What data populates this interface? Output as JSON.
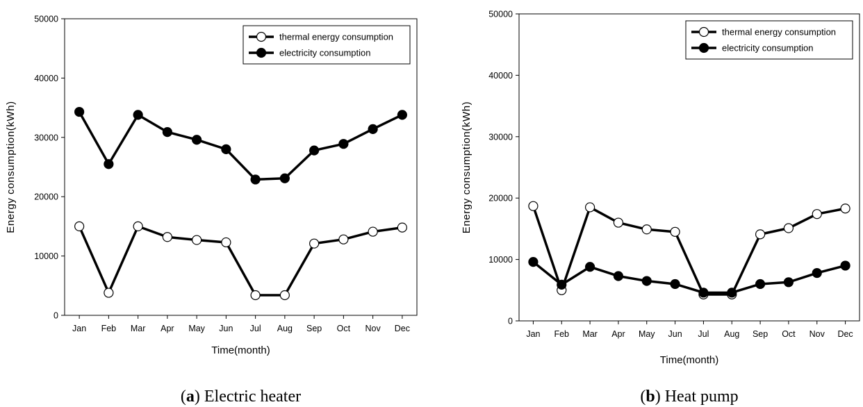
{
  "chart_data": [
    {
      "type": "line",
      "caption_label": "a",
      "caption_text": "Electric heater",
      "xlabel": "Time(month)",
      "ylabel": "Energy consumption(kWh)",
      "ylim": [
        0,
        50000
      ],
      "yticks": [
        0,
        10000,
        20000,
        30000,
        40000,
        50000
      ],
      "categories": [
        "Jan",
        "Feb",
        "Mar",
        "Apr",
        "May",
        "Jun",
        "Jul",
        "Aug",
        "Sep",
        "Oct",
        "Nov",
        "Dec"
      ],
      "legend_position": "top-right",
      "grid": false,
      "series": [
        {
          "name": "thermal energy consumption",
          "marker": "open-circle",
          "values": [
            15000,
            3800,
            15000,
            13200,
            12700,
            12300,
            3400,
            3400,
            12100,
            12800,
            14100,
            14800
          ]
        },
        {
          "name": "electricity consumption",
          "marker": "filled-circle",
          "values": [
            34300,
            25500,
            33800,
            30900,
            29600,
            28000,
            22900,
            23100,
            27800,
            28900,
            31400,
            33800
          ]
        }
      ]
    },
    {
      "type": "line",
      "caption_label": "b",
      "caption_text": "Heat pump",
      "xlabel": "Time(month)",
      "ylabel": "Energy consumption(kWh)",
      "ylim": [
        0,
        50000
      ],
      "yticks": [
        0,
        10000,
        20000,
        30000,
        40000,
        50000
      ],
      "categories": [
        "Jan",
        "Feb",
        "Mar",
        "Apr",
        "May",
        "Jun",
        "Jul",
        "Aug",
        "Sep",
        "Oct",
        "Nov",
        "Dec"
      ],
      "legend_position": "top-right",
      "grid": false,
      "series": [
        {
          "name": "thermal energy consumption",
          "marker": "open-circle",
          "values": [
            18700,
            5000,
            18500,
            16000,
            14900,
            14500,
            4300,
            4300,
            14100,
            15100,
            17400,
            18300
          ]
        },
        {
          "name": "electricity consumption",
          "marker": "filled-circle",
          "values": [
            9600,
            5900,
            8800,
            7300,
            6500,
            6000,
            4600,
            4600,
            6000,
            6300,
            7800,
            9000
          ]
        }
      ]
    }
  ]
}
